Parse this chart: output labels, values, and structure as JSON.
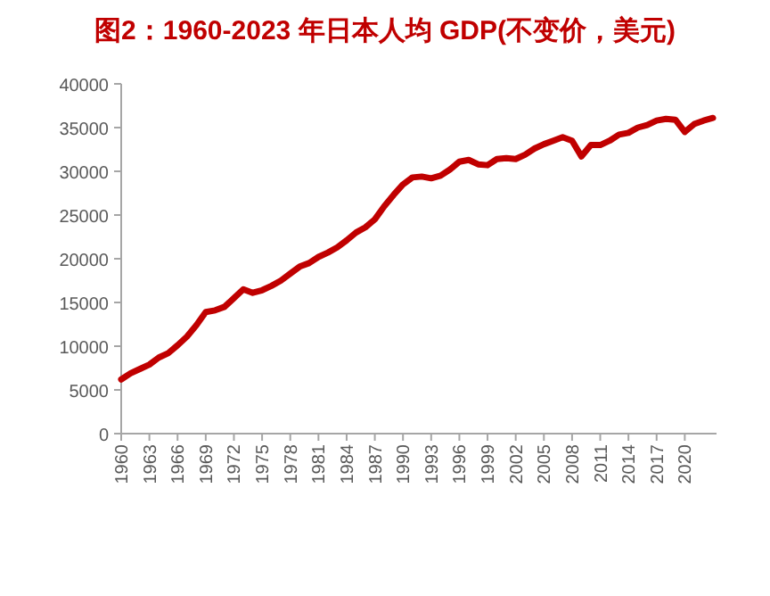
{
  "chart_data": {
    "type": "line",
    "title": "图2：1960-2023 年日本人均 GDP(不变价，美元)",
    "categories": [
      "1960",
      null,
      null,
      "1963",
      null,
      null,
      "1966",
      null,
      null,
      "1969",
      null,
      null,
      "1972",
      null,
      null,
      "1975",
      null,
      null,
      "1978",
      null,
      null,
      "1981",
      null,
      null,
      "1984",
      null,
      null,
      "1987",
      null,
      null,
      "1990",
      null,
      null,
      "1993",
      null,
      null,
      "1996",
      null,
      null,
      "1999",
      null,
      null,
      "2002",
      null,
      null,
      "2005",
      null,
      null,
      "2008",
      null,
      null,
      "2011",
      null,
      null,
      "2014",
      null,
      null,
      "2017",
      null,
      null,
      "2020",
      null,
      null,
      null
    ],
    "series": [
      {
        "color": "#c00000",
        "values": [
          6200,
          6900,
          7400,
          7900,
          8700,
          9200,
          10100,
          11100,
          12400,
          13900,
          14100,
          14500,
          15500,
          16500,
          16100,
          16400,
          16900,
          17500,
          18300,
          19100,
          19500,
          20200,
          20700,
          21300,
          22100,
          23000,
          23600,
          24500,
          26000,
          27300,
          28500,
          29300,
          29400,
          29200,
          29500,
          30200,
          31100,
          31300,
          30800,
          30700,
          31400,
          31500,
          31400,
          31900,
          32600,
          33100,
          33500,
          33900,
          33500,
          31700,
          33000,
          33000,
          33500,
          34200,
          34400,
          35000,
          35300,
          35800,
          36000,
          35900,
          34500,
          35400,
          35800,
          36100
        ]
      }
    ],
    "ylim": [
      0,
      40000
    ],
    "yticks": [
      0,
      5000,
      10000,
      15000,
      20000,
      25000,
      30000,
      35000,
      40000
    ],
    "grid": false,
    "marker": "none",
    "line_style": "solid"
  }
}
